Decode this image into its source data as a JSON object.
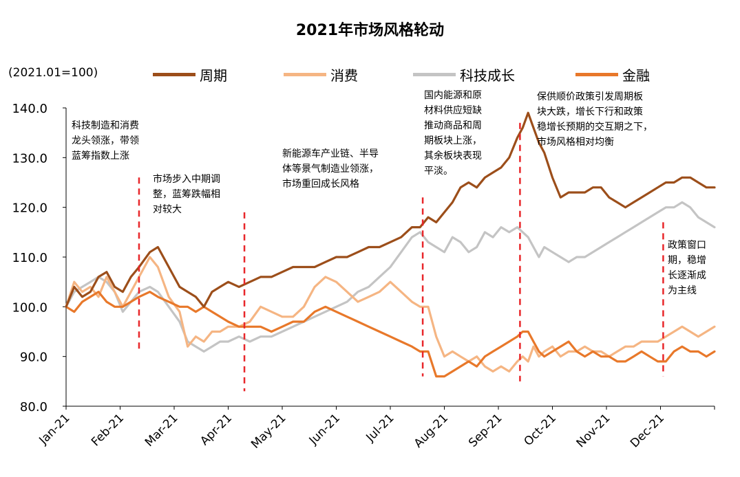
{
  "chart_data": {
    "type": "line",
    "title": "2021年市场风格轮动",
    "unit_label": "(2021.01=100)",
    "ylim": [
      80,
      140
    ],
    "yticks": [
      "140.0",
      "130.0",
      "120.0",
      "110.0",
      "100.0",
      "90.0",
      "80.0"
    ],
    "ytick_values": [
      140,
      130,
      120,
      110,
      100,
      90,
      80
    ],
    "categories": [
      "Jan-21",
      "Feb-21",
      "Mar-21",
      "Apr-21",
      "May-21",
      "Jun-21",
      "Jul-21",
      "Aug-21",
      "Sep-21",
      "Oct-21",
      "Nov-21",
      "Dec-21"
    ],
    "x_index_range": [
      0,
      12
    ],
    "series": [
      {
        "name": "周期",
        "color": "#9C4E1A",
        "x": [
          0,
          0.15,
          0.3,
          0.45,
          0.6,
          0.75,
          0.9,
          1.05,
          1.2,
          1.35,
          1.55,
          1.7,
          1.9,
          2.1,
          2.25,
          2.4,
          2.55,
          2.7,
          2.85,
          3.0,
          3.2,
          3.4,
          3.6,
          3.8,
          4.0,
          4.2,
          4.4,
          4.6,
          4.8,
          5.0,
          5.2,
          5.4,
          5.6,
          5.8,
          6.0,
          6.2,
          6.4,
          6.55,
          6.7,
          6.85,
          7.0,
          7.15,
          7.3,
          7.45,
          7.6,
          7.75,
          7.9,
          8.05,
          8.2,
          8.35,
          8.45,
          8.55,
          8.65,
          8.75,
          8.85,
          9.0,
          9.15,
          9.3,
          9.45,
          9.6,
          9.75,
          9.9,
          10.05,
          10.2,
          10.35,
          10.5,
          10.65,
          10.8,
          10.95,
          11.1,
          11.25,
          11.4,
          11.55,
          11.7,
          11.85,
          12.0
        ],
        "values": [
          100,
          104,
          102,
          103,
          106,
          107,
          104,
          103,
          106,
          108,
          111,
          112,
          108,
          104,
          103,
          102,
          100,
          103,
          104,
          105,
          104,
          105,
          106,
          106,
          107,
          108,
          108,
          108,
          109,
          110,
          110,
          111,
          112,
          112,
          113,
          114,
          116,
          116,
          118,
          117,
          119,
          121,
          124,
          125,
          124,
          126,
          127,
          128,
          130,
          134,
          136,
          139,
          136,
          133,
          131,
          126,
          122,
          123,
          123,
          123,
          124,
          124,
          122,
          121,
          120,
          121,
          122,
          123,
          124,
          125,
          125,
          126,
          126,
          125,
          124,
          124
        ]
      },
      {
        "name": "消费",
        "color": "#F5B583",
        "x": [
          0,
          0.15,
          0.3,
          0.45,
          0.6,
          0.75,
          0.9,
          1.05,
          1.2,
          1.35,
          1.55,
          1.7,
          1.9,
          2.1,
          2.25,
          2.4,
          2.55,
          2.7,
          2.85,
          3.0,
          3.2,
          3.4,
          3.6,
          3.8,
          4.0,
          4.2,
          4.4,
          4.6,
          4.8,
          5.0,
          5.2,
          5.4,
          5.6,
          5.8,
          6.0,
          6.2,
          6.4,
          6.55,
          6.7,
          6.85,
          7.0,
          7.15,
          7.3,
          7.45,
          7.6,
          7.75,
          7.9,
          8.05,
          8.2,
          8.35,
          8.45,
          8.55,
          8.65,
          8.75,
          8.85,
          9.0,
          9.15,
          9.3,
          9.45,
          9.6,
          9.75,
          9.9,
          10.05,
          10.2,
          10.35,
          10.5,
          10.65,
          10.8,
          10.95,
          11.1,
          11.25,
          11.4,
          11.55,
          11.7,
          11.85,
          12.0
        ],
        "values": [
          100,
          105,
          103,
          104,
          102,
          106,
          103,
          100,
          103,
          106,
          110,
          108,
          102,
          99,
          92,
          94,
          93,
          95,
          95,
          96,
          96,
          97,
          100,
          99,
          98,
          98,
          100,
          104,
          106,
          105,
          103,
          101,
          102,
          103,
          105,
          103,
          101,
          100,
          100,
          94,
          90,
          91,
          90,
          89,
          90,
          88,
          87,
          88,
          87,
          89,
          90,
          89,
          92,
          90,
          91,
          92,
          90,
          91,
          91,
          92,
          91,
          91,
          90,
          91,
          92,
          92,
          93,
          93,
          93,
          94,
          95,
          96,
          95,
          94,
          95,
          96
        ]
      },
      {
        "name": "科技成长",
        "color": "#C4C4C4",
        "x": [
          0,
          0.15,
          0.3,
          0.45,
          0.6,
          0.75,
          0.9,
          1.05,
          1.2,
          1.35,
          1.55,
          1.7,
          1.9,
          2.1,
          2.25,
          2.4,
          2.55,
          2.7,
          2.85,
          3.0,
          3.2,
          3.4,
          3.6,
          3.8,
          4.0,
          4.2,
          4.4,
          4.6,
          4.8,
          5.0,
          5.2,
          5.4,
          5.6,
          5.8,
          6.0,
          6.2,
          6.4,
          6.55,
          6.7,
          6.85,
          7.0,
          7.15,
          7.3,
          7.45,
          7.6,
          7.75,
          7.9,
          8.05,
          8.2,
          8.35,
          8.45,
          8.55,
          8.65,
          8.75,
          8.85,
          9.0,
          9.15,
          9.3,
          9.45,
          9.6,
          9.75,
          9.9,
          10.05,
          10.2,
          10.35,
          10.5,
          10.65,
          10.8,
          10.95,
          11.1,
          11.25,
          11.4,
          11.55,
          11.7,
          11.85,
          12.0
        ],
        "values": [
          100,
          103,
          104,
          105,
          106,
          105,
          103,
          99,
          101,
          103,
          104,
          103,
          100,
          97,
          93,
          92,
          91,
          92,
          93,
          93,
          94,
          93,
          94,
          94,
          95,
          96,
          97,
          98,
          99,
          100,
          101,
          103,
          104,
          106,
          108,
          111,
          114,
          115,
          113,
          112,
          111,
          114,
          113,
          111,
          112,
          115,
          114,
          116,
          115,
          116,
          115,
          114,
          112,
          110,
          112,
          111,
          110,
          109,
          110,
          110,
          111,
          112,
          113,
          114,
          115,
          116,
          117,
          118,
          119,
          120,
          120,
          121,
          120,
          118,
          117,
          116
        ]
      },
      {
        "name": "金融",
        "color": "#E8782A",
        "x": [
          0,
          0.15,
          0.3,
          0.45,
          0.6,
          0.75,
          0.9,
          1.05,
          1.2,
          1.35,
          1.55,
          1.7,
          1.9,
          2.1,
          2.25,
          2.4,
          2.55,
          2.7,
          2.85,
          3.0,
          3.2,
          3.4,
          3.6,
          3.8,
          4.0,
          4.2,
          4.4,
          4.6,
          4.8,
          5.0,
          5.2,
          5.4,
          5.6,
          5.8,
          6.0,
          6.2,
          6.4,
          6.55,
          6.7,
          6.85,
          7.0,
          7.15,
          7.3,
          7.45,
          7.6,
          7.75,
          7.9,
          8.05,
          8.2,
          8.35,
          8.45,
          8.55,
          8.65,
          8.75,
          8.85,
          9.0,
          9.15,
          9.3,
          9.45,
          9.6,
          9.75,
          9.9,
          10.05,
          10.2,
          10.35,
          10.5,
          10.65,
          10.8,
          10.95,
          11.1,
          11.25,
          11.4,
          11.55,
          11.7,
          11.85,
          12.0
        ],
        "values": [
          100,
          99,
          101,
          102,
          103,
          101,
          100,
          100,
          101,
          102,
          103,
          102,
          101,
          100,
          100,
          99,
          100,
          99,
          98,
          97,
          96,
          96,
          96,
          95,
          96,
          97,
          97,
          99,
          100,
          99,
          98,
          97,
          96,
          95,
          94,
          93,
          92,
          91,
          91,
          86,
          86,
          87,
          88,
          89,
          88,
          90,
          91,
          92,
          93,
          94,
          95,
          95,
          93,
          91,
          90,
          91,
          92,
          93,
          91,
          90,
          91,
          90,
          90,
          89,
          89,
          90,
          91,
          90,
          89,
          89,
          91,
          92,
          91,
          91,
          90,
          91
        ]
      }
    ],
    "annotations": [
      {
        "text": "科技制造和消费\n龙头领涨，带领\n蓝筹指数上涨"
      },
      {
        "text": "市场步入中期调\n整，蓝筹跌幅相\n对较大"
      },
      {
        "text": "新能源车产业链、半导\n体等景气制造业领涨，\n市场重回成长风格"
      },
      {
        "text": "国内能源和原\n材料供应短缺\n推动商品和周\n期板块上涨，\n其余板块表现\n平淡。"
      },
      {
        "text": "保供顺价政策引发周期板\n块大跌，增长下行和政策\n稳增长预期的交互期之下，\n市场风格相对均衡"
      },
      {
        "text": "政策窗口\n期，稳增\n长逐渐成\n为主线"
      }
    ],
    "dividers": [
      {
        "x": 1.35,
        "ymin": 91,
        "ymax": 126
      },
      {
        "x": 3.3,
        "ymin": 83,
        "ymax": 119
      },
      {
        "x": 6.6,
        "ymin": 86,
        "ymax": 122
      },
      {
        "x": 8.4,
        "ymin": 85,
        "ymax": 137
      },
      {
        "x": 11.05,
        "ymin": 86,
        "ymax": 117
      }
    ],
    "divider_color": "#E8262A"
  }
}
